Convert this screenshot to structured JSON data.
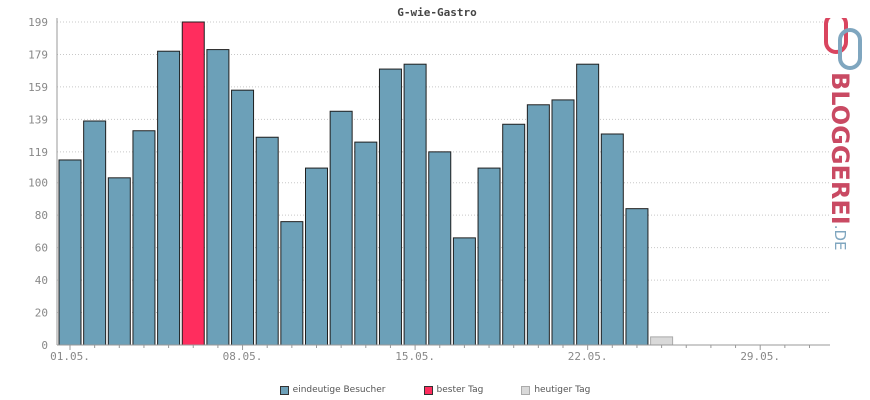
{
  "chart_data": {
    "type": "bar",
    "title": "G-wie-Gastro",
    "ylim": [
      0,
      199
    ],
    "yticks": [
      0,
      20,
      40,
      60,
      80,
      100,
      119,
      139,
      159,
      179,
      199
    ],
    "xtick_labels": [
      "01.05.",
      "08.05.",
      "15.05.",
      "22.05.",
      "29.05."
    ],
    "xtick_days": [
      1,
      8,
      15,
      22,
      29
    ],
    "days": [
      1,
      2,
      3,
      4,
      5,
      6,
      7,
      8,
      9,
      10,
      11,
      12,
      13,
      14,
      15,
      16,
      17,
      18,
      19,
      20,
      21,
      22,
      23,
      24,
      25,
      26,
      27,
      28,
      29,
      30,
      31
    ],
    "series": [
      {
        "name": "eindeutige Besucher",
        "color": "#6ca0b8",
        "values": [
          114,
          138,
          103,
          132,
          181,
          199,
          182,
          157,
          128,
          76,
          109,
          144,
          125,
          170,
          173,
          119,
          66,
          109,
          136,
          148,
          151,
          173,
          130,
          84,
          null,
          null,
          null,
          null,
          null,
          null,
          null
        ]
      },
      {
        "name": "bester Tag",
        "color": "#ff2d5e",
        "day": 6,
        "value": 199
      },
      {
        "name": "heutiger Tag",
        "color": "#d9d9d9",
        "day": 25,
        "value": 5
      }
    ],
    "grid": true,
    "legend_position": "bottom-center"
  },
  "logo": {
    "name": "BLOGGEREI",
    "tld": ".DE"
  }
}
